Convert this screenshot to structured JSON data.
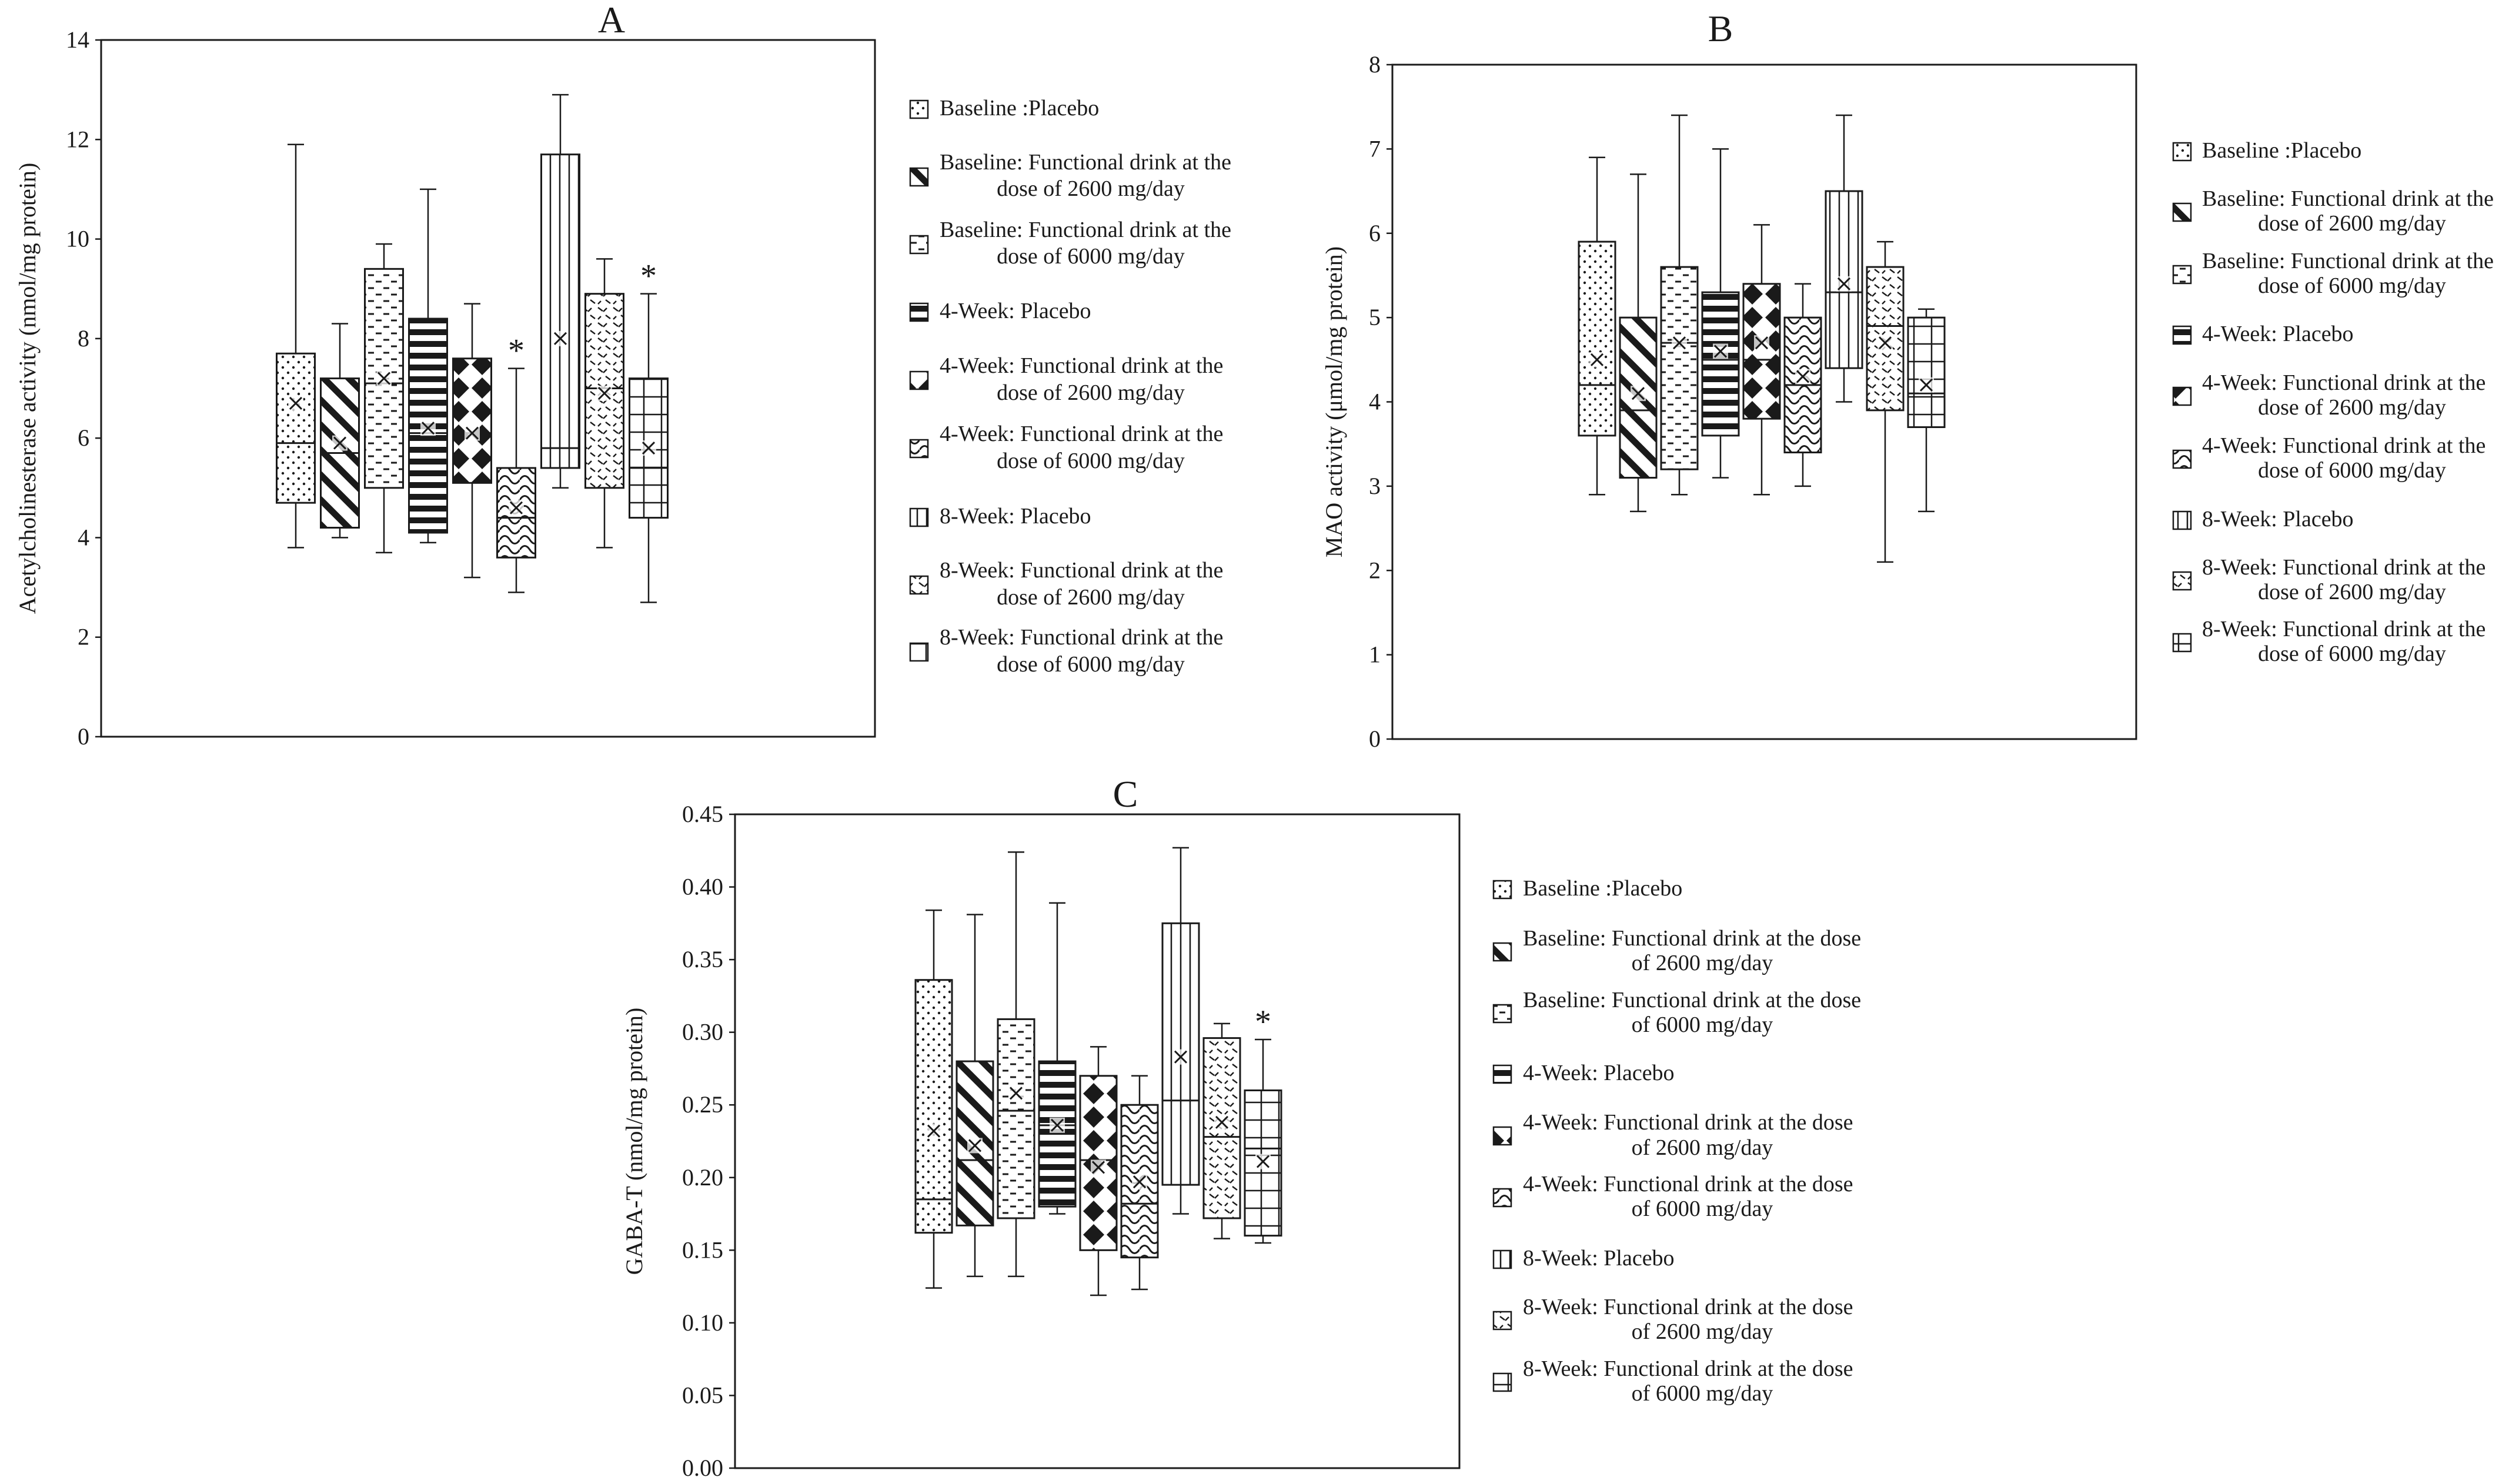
{
  "series_names": [
    "Baseline :Placebo",
    "Baseline: Functional drink at the dose of 2600 mg/day",
    "Baseline: Functional drink at the dose of 6000 mg/day",
    "4-Week: Placebo",
    "4-Week: Functional drink at the dose of 2600 mg/day",
    "4-Week: Functional drink at the dose of 6000 mg/day",
    "8-Week: Placebo",
    "8-Week: Functional drink at the dose of 2600 mg/day",
    "8-Week: Functional drink at the dose of 6000 mg/day"
  ],
  "colors": {
    "ink": "#1a1a1a",
    "background": "#ffffff"
  },
  "chart_data": [
    {
      "type": "boxplot",
      "title": "A",
      "ylabel": "Acetylcholinesterase activity (nmol/mg protein)",
      "ylim": [
        0,
        14
      ],
      "yticks": [
        "0",
        "2",
        "4",
        "6",
        "8",
        "10",
        "12",
        "14"
      ],
      "legend_lines": [
        [
          "Baseline :Placebo"
        ],
        [
          "Baseline: Functional drink at the",
          "dose of 2600 mg/day"
        ],
        [
          "Baseline: Functional drink at the",
          "dose of 6000 mg/day"
        ],
        [
          "4-Week: Placebo"
        ],
        [
          "4-Week: Functional drink at the",
          "dose of 2600 mg/day"
        ],
        [
          "4-Week: Functional drink at the",
          "dose of 6000 mg/day"
        ],
        [
          "8-Week: Placebo"
        ],
        [
          "8-Week: Functional drink at the",
          "dose of 2600 mg/day"
        ],
        [
          "8-Week: Functional drink at the",
          "dose of 6000 mg/day"
        ]
      ],
      "boxes": [
        {
          "min": 3.8,
          "q1": 4.7,
          "median": 5.9,
          "q3": 7.7,
          "max": 11.9,
          "mean": 6.7,
          "star": ""
        },
        {
          "min": 4.0,
          "q1": 4.2,
          "median": 5.7,
          "q3": 7.2,
          "max": 8.3,
          "mean": 5.9,
          "star": ""
        },
        {
          "min": 3.7,
          "q1": 5.0,
          "median": 7.1,
          "q3": 9.4,
          "max": 9.9,
          "mean": 7.2,
          "star": ""
        },
        {
          "min": 3.9,
          "q1": 4.1,
          "median": 6.1,
          "q3": 8.4,
          "max": 11.0,
          "mean": 6.2,
          "star": ""
        },
        {
          "min": 3.2,
          "q1": 5.1,
          "median": 6.1,
          "q3": 7.6,
          "max": 8.7,
          "mean": 6.1,
          "star": ""
        },
        {
          "min": 2.9,
          "q1": 3.6,
          "median": 4.4,
          "q3": 5.4,
          "max": 7.4,
          "mean": 4.6,
          "star": "*"
        },
        {
          "min": 5.0,
          "q1": 5.4,
          "median": 5.8,
          "q3": 11.7,
          "max": 12.9,
          "mean": 8.0,
          "star": ""
        },
        {
          "min": 3.8,
          "q1": 5.0,
          "median": 7.0,
          "q3": 8.9,
          "max": 9.6,
          "mean": 6.9,
          "star": ""
        },
        {
          "min": 2.7,
          "q1": 4.4,
          "median": 5.4,
          "q3": 7.2,
          "max": 8.9,
          "mean": 5.8,
          "star": "*"
        }
      ]
    },
    {
      "type": "boxplot",
      "title": "B",
      "ylabel": "MAO activity (μmol/mg protein)",
      "ylim": [
        0,
        8
      ],
      "yticks": [
        "0",
        "1",
        "2",
        "3",
        "4",
        "5",
        "6",
        "7",
        "8"
      ],
      "legend_lines": [
        [
          "Baseline :Placebo"
        ],
        [
          "Baseline: Functional drink at the",
          "dose of 2600 mg/day"
        ],
        [
          "Baseline: Functional drink at the",
          "dose of 6000 mg/day"
        ],
        [
          "4-Week: Placebo"
        ],
        [
          "4-Week: Functional drink at the",
          "dose of 2600 mg/day"
        ],
        [
          "4-Week: Functional drink at the",
          "dose of 6000 mg/day"
        ],
        [
          "8-Week: Placebo"
        ],
        [
          "8-Week: Functional drink at the",
          "dose of 2600 mg/day"
        ],
        [
          "8-Week: Functional drink at the",
          "dose of 6000 mg/day"
        ]
      ],
      "boxes": [
        {
          "min": 2.9,
          "q1": 3.6,
          "median": 4.2,
          "q3": 5.9,
          "max": 6.9,
          "mean": 4.5,
          "star": ""
        },
        {
          "min": 2.7,
          "q1": 3.1,
          "median": 3.9,
          "q3": 5.0,
          "max": 6.7,
          "mean": 4.1,
          "star": ""
        },
        {
          "min": 2.9,
          "q1": 3.2,
          "median": 4.7,
          "q3": 5.6,
          "max": 7.4,
          "mean": 4.7,
          "star": ""
        },
        {
          "min": 3.1,
          "q1": 3.6,
          "median": 4.5,
          "q3": 5.3,
          "max": 7.0,
          "mean": 4.6,
          "star": ""
        },
        {
          "min": 2.9,
          "q1": 3.8,
          "median": 4.5,
          "q3": 5.4,
          "max": 6.1,
          "mean": 4.7,
          "star": ""
        },
        {
          "min": 3.0,
          "q1": 3.4,
          "median": 4.2,
          "q3": 5.0,
          "max": 5.4,
          "mean": 4.3,
          "star": ""
        },
        {
          "min": 4.0,
          "q1": 4.4,
          "median": 5.3,
          "q3": 6.5,
          "max": 7.4,
          "mean": 5.4,
          "star": ""
        },
        {
          "min": 2.1,
          "q1": 3.9,
          "median": 4.9,
          "q3": 5.6,
          "max": 5.9,
          "mean": 4.7,
          "star": ""
        },
        {
          "min": 2.7,
          "q1": 3.7,
          "median": 4.1,
          "q3": 5.0,
          "max": 5.1,
          "mean": 4.2,
          "star": ""
        }
      ]
    },
    {
      "type": "boxplot",
      "title": "C",
      "ylabel": "GABA-T (nmol/mg protein)",
      "ylim": [
        0,
        0.45
      ],
      "yticks": [
        "0.00",
        "0.05",
        "0.10",
        "0.15",
        "0.20",
        "0.25",
        "0.30",
        "0.35",
        "0.40",
        "0.45"
      ],
      "legend_lines": [
        [
          "Baseline :Placebo"
        ],
        [
          "Baseline: Functional drink at the dose",
          "of 2600 mg/day"
        ],
        [
          "Baseline: Functional drink at the dose",
          "of 6000 mg/day"
        ],
        [
          "4-Week: Placebo"
        ],
        [
          "4-Week: Functional drink at the dose",
          "of 2600 mg/day"
        ],
        [
          "4-Week: Functional drink at the dose",
          "of 6000 mg/day"
        ],
        [
          "8-Week: Placebo"
        ],
        [
          "8-Week: Functional drink at the dose",
          "of 2600 mg/day"
        ],
        [
          "8-Week: Functional drink at the dose",
          "of 6000 mg/day"
        ]
      ],
      "boxes": [
        {
          "min": 0.124,
          "q1": 0.162,
          "median": 0.185,
          "q3": 0.336,
          "max": 0.384,
          "mean": 0.232,
          "star": ""
        },
        {
          "min": 0.132,
          "q1": 0.167,
          "median": 0.212,
          "q3": 0.28,
          "max": 0.381,
          "mean": 0.222,
          "star": ""
        },
        {
          "min": 0.132,
          "q1": 0.172,
          "median": 0.246,
          "q3": 0.309,
          "max": 0.424,
          "mean": 0.258,
          "star": ""
        },
        {
          "min": 0.175,
          "q1": 0.18,
          "median": 0.236,
          "q3": 0.28,
          "max": 0.389,
          "mean": 0.236,
          "star": ""
        },
        {
          "min": 0.119,
          "q1": 0.15,
          "median": 0.212,
          "q3": 0.27,
          "max": 0.29,
          "mean": 0.207,
          "star": ""
        },
        {
          "min": 0.123,
          "q1": 0.145,
          "median": 0.182,
          "q3": 0.25,
          "max": 0.27,
          "mean": 0.197,
          "star": ""
        },
        {
          "min": 0.175,
          "q1": 0.195,
          "median": 0.253,
          "q3": 0.375,
          "max": 0.427,
          "mean": 0.283,
          "star": ""
        },
        {
          "min": 0.158,
          "q1": 0.172,
          "median": 0.228,
          "q3": 0.296,
          "max": 0.306,
          "mean": 0.238,
          "star": ""
        },
        {
          "min": 0.155,
          "q1": 0.16,
          "median": 0.22,
          "q3": 0.26,
          "max": 0.295,
          "mean": 0.211,
          "star": "*"
        }
      ]
    }
  ]
}
